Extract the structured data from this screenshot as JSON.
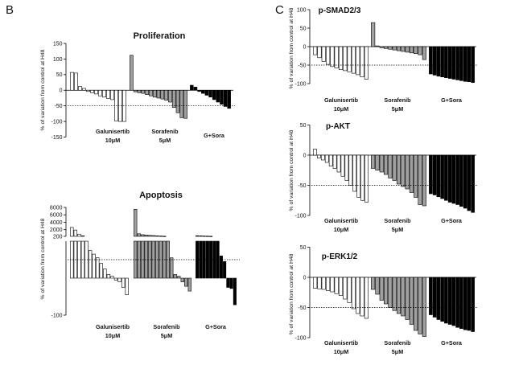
{
  "figure": {
    "panel_b": "B",
    "panel_c": "C"
  },
  "chart_data": [
    {
      "type": "bar",
      "title": "Proliferation",
      "ylabel": "% of variation from control at H48",
      "ylim": [
        -150,
        150
      ],
      "yticks": [
        150,
        100,
        50,
        0,
        -50,
        -100,
        -150
      ],
      "reference_line": -50,
      "groups": [
        {
          "label_lines": [
            "Galunisertib",
            "10μM"
          ],
          "color": "#ffffff",
          "values": [
            57,
            55,
            12,
            6,
            -4,
            -8,
            -12,
            -18,
            -22,
            -26,
            -30,
            -98,
            -100,
            -100
          ]
        },
        {
          "label_lines": [
            "Sorafenib",
            "5μM"
          ],
          "color": "#a0a0a0",
          "values": [
            112,
            -5,
            -8,
            -10,
            -14,
            -18,
            -22,
            -25,
            -28,
            -32,
            -38,
            -55,
            -72,
            -88,
            -90
          ]
        },
        {
          "label_lines": [
            "G+Sora"
          ],
          "color": "#000000",
          "values": [
            16,
            10,
            -4,
            -10,
            -16,
            -22,
            -30,
            -38,
            -45,
            -52,
            -58
          ]
        }
      ]
    },
    {
      "type": "bar",
      "title": "Apoptosis",
      "ylabel": "% of variation from control at H48",
      "ylim": [
        -100,
        8000
      ],
      "y_segments": [
        [
          -100,
          100
        ],
        [
          200,
          8000
        ]
      ],
      "yticks": [
        8000,
        6000,
        4000,
        2000,
        200,
        -100
      ],
      "reference_line": 50,
      "groups": [
        {
          "label_lines": [
            "Galunisertib",
            "10μM"
          ],
          "color": "#ffffff",
          "values": [
            2600,
            1900,
            800,
            350,
            100,
            75,
            65,
            55,
            40,
            25,
            10,
            5,
            -5,
            -10,
            -25,
            -45
          ]
        },
        {
          "label_lines": [
            "Sorafenib",
            "5μM"
          ],
          "color": "#a0a0a0",
          "values": [
            7500,
            900,
            650,
            550,
            480,
            420,
            360,
            300,
            250,
            100,
            55,
            10,
            5,
            -10,
            -22,
            -35
          ]
        },
        {
          "label_lines": [
            "G+Sora"
          ],
          "color": "#000000",
          "values": [
            380,
            340,
            300,
            270,
            240,
            100,
            100,
            60,
            45,
            -25,
            -28,
            -72
          ]
        }
      ]
    },
    {
      "type": "bar",
      "title": "p-SMAD2/3",
      "ylabel": "% of variation from control at H48",
      "ylim": [
        -100,
        100
      ],
      "yticks": [
        100,
        50,
        0,
        -50,
        -100
      ],
      "reference_line": -50,
      "groups": [
        {
          "label_lines": [
            "Galunisertib",
            "10μM"
          ],
          "color": "#ffffff",
          "values": [
            -22,
            -30,
            -40,
            -48,
            -54,
            -58,
            -62,
            -65,
            -68,
            -72,
            -76,
            -82,
            -88
          ]
        },
        {
          "label_lines": [
            "Sorafenib",
            "5μM"
          ],
          "color": "#a0a0a0",
          "values": [
            65,
            2,
            -3,
            -5,
            -7,
            -9,
            -11,
            -13,
            -15,
            -17,
            -19,
            -22,
            -35
          ]
        },
        {
          "label_lines": [
            "G+Sora"
          ],
          "color": "#000000",
          "values": [
            -74,
            -77,
            -80,
            -82,
            -84,
            -86,
            -88,
            -90,
            -92,
            -94,
            -95,
            -97
          ]
        }
      ]
    },
    {
      "type": "bar",
      "title": "p-AKT",
      "ylabel": "% of variation from control at H48",
      "ylim": [
        -100,
        50
      ],
      "yticks": [
        50,
        0,
        -50,
        -100
      ],
      "reference_line": -50,
      "groups": [
        {
          "label_lines": [
            "Galunisertib",
            "10μM"
          ],
          "color": "#ffffff",
          "values": [
            10,
            -5,
            -8,
            -12,
            -18,
            -22,
            -28,
            -35,
            -42,
            -50,
            -60,
            -70,
            -75,
            -78
          ]
        },
        {
          "label_lines": [
            "Sorafenib",
            "5μM"
          ],
          "color": "#a0a0a0",
          "values": [
            -22,
            -25,
            -28,
            -32,
            -38,
            -42,
            -48,
            -52,
            -56,
            -62,
            -70,
            -82,
            -84
          ]
        },
        {
          "label_lines": [
            "G+Sora"
          ],
          "color": "#000000",
          "values": [
            -64,
            -66,
            -69,
            -72,
            -75,
            -78,
            -80,
            -82,
            -85,
            -88,
            -92,
            -95
          ]
        }
      ]
    },
    {
      "type": "bar",
      "title": "p-ERK1/2",
      "ylabel": "% of variation from control at H48",
      "ylim": [
        -100,
        50
      ],
      "yticks": [
        50,
        0,
        -50,
        -100
      ],
      "reference_line": -50,
      "groups": [
        {
          "label_lines": [
            "Galunisertib",
            "10μM"
          ],
          "color": "#ffffff",
          "values": [
            -18,
            -19,
            -20,
            -22,
            -24,
            -27,
            -30,
            -36,
            -42,
            -52,
            -60,
            -64,
            -68
          ]
        },
        {
          "label_lines": [
            "Sorafenib",
            "5μM"
          ],
          "color": "#a0a0a0",
          "values": [
            -20,
            -28,
            -38,
            -44,
            -50,
            -55,
            -60,
            -64,
            -70,
            -78,
            -88,
            -94,
            -98
          ]
        },
        {
          "label_lines": [
            "G+Sora"
          ],
          "color": "#000000",
          "values": [
            -62,
            -66,
            -70,
            -73,
            -76,
            -78,
            -80,
            -83,
            -85,
            -87,
            -88,
            -90
          ]
        }
      ]
    }
  ]
}
